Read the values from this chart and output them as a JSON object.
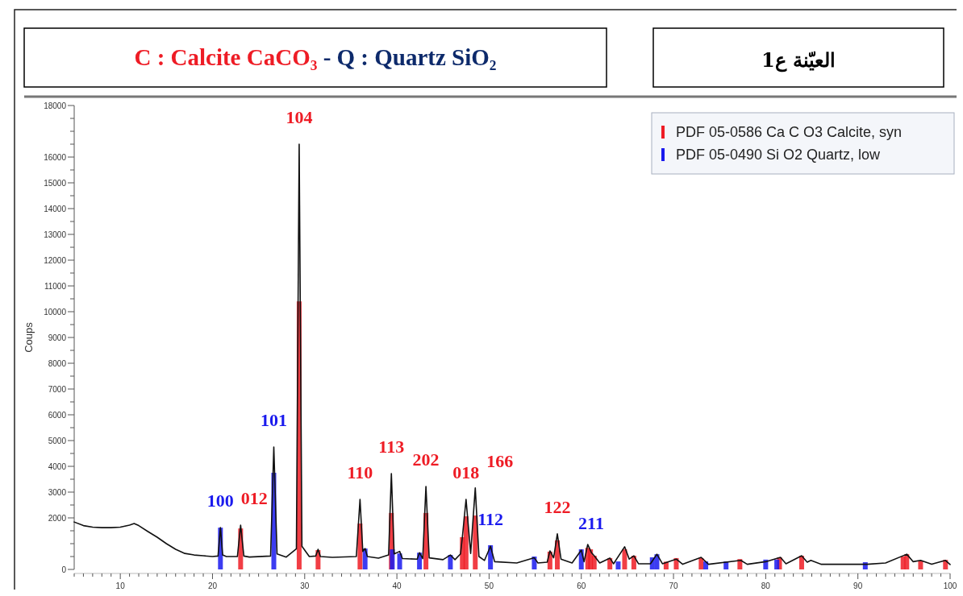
{
  "chart_data": {
    "type": "line",
    "title": "C : Calcite  CaCO₃",
    "subtitle": "- Q : Quartz  SiO₂",
    "ylabel": "Coups",
    "annotations": [
      "العيّنة  ع1",
      {
        "text": "100",
        "x": 20.86,
        "y": 1620
      },
      {
        "text": "012",
        "x": 23.05,
        "y": 1720
      },
      {
        "text": "101",
        "x": 26.65,
        "y": 4750
      },
      {
        "text": "104",
        "x": 29.4,
        "y": 16500
      },
      {
        "text": "110",
        "x": 36.0,
        "y": 2720
      },
      {
        "text": "113",
        "x": 39.4,
        "y": 3720
      },
      {
        "text": "202",
        "x": 43.15,
        "y": 3220
      },
      {
        "text": "018",
        "x": 47.5,
        "y": 2720
      },
      {
        "text": "166",
        "x": 48.5,
        "y": 3160
      },
      {
        "text": "112",
        "x": 50.15,
        "y": 900
      },
      {
        "text": "122",
        "x": 57.4,
        "y": 1380
      },
      {
        "text": "211",
        "x": 60.0,
        "y": 750
      }
    ],
    "xlim": [
      5,
      100
    ],
    "ylim": [
      0,
      18000
    ],
    "xticks": [
      {
        "value": 5,
        "label": null
      },
      {
        "value": 6,
        "label": null
      },
      {
        "value": 7,
        "label": null
      },
      {
        "value": 8,
        "label": null
      },
      {
        "value": 9,
        "label": null
      },
      10,
      {
        "value": 11,
        "label": null
      },
      {
        "value": 12,
        "label": null
      },
      {
        "value": 13,
        "label": null
      },
      {
        "value": 14,
        "label": null
      },
      {
        "value": 15,
        "label": null
      },
      {
        "value": 16,
        "label": null
      },
      {
        "value": 17,
        "label": null
      },
      {
        "value": 18,
        "label": null
      },
      {
        "value": 19,
        "label": null
      },
      20,
      {
        "value": 21,
        "label": null
      },
      {
        "value": 22,
        "label": null
      },
      {
        "value": 23,
        "label": null
      },
      {
        "value": 24,
        "label": null
      },
      {
        "value": 25,
        "label": null
      },
      {
        "value": 26,
        "label": null
      },
      {
        "value": 27,
        "label": null
      },
      {
        "value": 28,
        "label": null
      },
      {
        "value": 29,
        "label": null
      },
      30,
      {
        "value": 31,
        "label": null
      },
      {
        "value": 32,
        "label": null
      },
      {
        "value": 33,
        "label": null
      },
      {
        "value": 34,
        "label": null
      },
      {
        "value": 35,
        "label": null
      },
      {
        "value": 36,
        "label": null
      },
      {
        "value": 37,
        "label": null
      },
      {
        "value": 38,
        "label": null
      },
      {
        "value": 39,
        "label": null
      },
      40,
      {
        "value": 41,
        "label": null
      },
      {
        "value": 42,
        "label": null
      },
      {
        "value": 43,
        "label": null
      },
      {
        "value": 44,
        "label": null
      },
      {
        "value": 45,
        "label": null
      },
      {
        "value": 46,
        "label": null
      },
      {
        "value": 47,
        "label": null
      },
      {
        "value": 48,
        "label": null
      },
      {
        "value": 49,
        "label": null
      },
      50,
      {
        "value": 51,
        "label": null
      },
      {
        "value": 52,
        "label": null
      },
      {
        "value": 53,
        "label": null
      },
      {
        "value": 54,
        "label": null
      },
      {
        "value": 55,
        "label": null
      },
      {
        "value": 56,
        "label": null
      },
      {
        "value": 57,
        "label": null
      },
      {
        "value": 58,
        "label": null
      },
      {
        "value": 59,
        "label": null
      },
      60,
      {
        "value": 61,
        "label": null
      },
      {
        "value": 62,
        "label": null
      },
      {
        "value": 63,
        "label": null
      },
      {
        "value": 64,
        "label": null
      },
      {
        "value": 65,
        "label": null
      },
      {
        "value": 66,
        "label": null
      },
      {
        "value": 67,
        "label": null
      },
      {
        "value": 68,
        "label": null
      },
      {
        "value": 69,
        "label": null
      },
      70,
      {
        "value": 71,
        "label": null
      },
      {
        "value": 72,
        "label": null
      },
      {
        "value": 73,
        "label": null
      },
      {
        "value": 74,
        "label": null
      },
      {
        "value": 75,
        "label": null
      },
      {
        "value": 76,
        "label": null
      },
      {
        "value": 77,
        "label": null
      },
      {
        "value": 78,
        "label": null
      },
      {
        "value": 79,
        "label": null
      },
      80,
      {
        "value": 81,
        "label": null
      },
      {
        "value": 82,
        "label": null
      },
      {
        "value": 83,
        "label": null
      },
      {
        "value": 84,
        "label": null
      },
      {
        "value": 85,
        "label": null
      },
      {
        "value": 86,
        "label": null
      },
      {
        "value": 87,
        "label": null
      },
      {
        "value": 88,
        "label": null
      },
      {
        "value": 89,
        "label": null
      },
      90,
      {
        "value": 91,
        "label": null
      },
      {
        "value": 92,
        "label": null
      },
      {
        "value": 93,
        "label": null
      },
      {
        "value": 94,
        "label": null
      },
      {
        "value": 95,
        "label": null
      },
      {
        "value": 96,
        "label": null
      },
      {
        "value": 97,
        "label": null
      },
      {
        "value": 98,
        "label": null
      },
      {
        "value": 99,
        "label": null
      },
      100
    ],
    "yticks": [
      0,
      {
        "value": 500,
        "label": null
      },
      {
        "value": 1000,
        "label": null
      },
      {
        "value": 1500,
        "label": null
      },
      2000,
      {
        "value": 2500,
        "label": null
      },
      3000,
      {
        "value": 3500,
        "label": null
      },
      4000,
      {
        "value": 4500,
        "label": null
      },
      5000,
      {
        "value": 5500,
        "label": null
      },
      6000,
      {
        "value": 6500,
        "label": null
      },
      7000,
      {
        "value": 7500,
        "label": null
      },
      8000,
      {
        "value": 8500,
        "label": null
      },
      9000,
      {
        "value": 9500,
        "label": null
      },
      10000,
      {
        "value": 10500,
        "label": null
      },
      11000,
      {
        "value": 11500,
        "label": null
      },
      12000,
      {
        "value": 12500,
        "label": null
      },
      13000,
      {
        "value": 13500,
        "label": null
      },
      14000,
      {
        "value": 14500,
        "label": null
      },
      15000,
      {
        "value": 15500,
        "label": null
      },
      16000,
      {
        "value": 16500,
        "label": null
      },
      {
        "value": 17000,
        "label": null
      },
      {
        "value": 17500,
        "label": null
      },
      18000
    ],
    "legend": "top right",
    "series": [
      {
        "type": "bar",
        "name": "PDF 05-0586 Ca C O3 Calcite, syn",
        "color": "#ee1c25",
        "x": [
          23.05,
          29.4,
          31.45,
          36.0,
          39.4,
          43.15,
          47.1,
          47.5,
          48.5,
          56.6,
          57.4,
          60.7,
          61.0,
          61.4,
          63.1,
          64.7,
          65.7,
          69.2,
          70.3,
          73.0,
          77.2,
          81.5,
          83.9,
          94.9,
          95.3,
          96.8,
          99.5
        ],
        "values": [
          1590,
          10400,
          750,
          1780,
          2190,
          2190,
          1250,
          2060,
          2090,
          690,
          1130,
          840,
          780,
          530,
          440,
          780,
          530,
          300,
          440,
          440,
          400,
          470,
          530,
          500,
          590,
          340,
          370
        ]
      },
      {
        "type": "bar",
        "name": "PDF 05-0490 Si O2 Quartz, low",
        "color": "#1a1aee",
        "x": [
          20.86,
          26.65,
          36.55,
          39.5,
          40.3,
          42.45,
          45.8,
          50.15,
          54.9,
          60.0,
          64.0,
          67.7,
          68.2,
          73.5,
          75.7,
          80.0,
          81.2,
          90.8
        ],
        "values": [
          1620,
          3750,
          810,
          780,
          620,
          650,
          560,
          940,
          500,
          780,
          310,
          470,
          590,
          310,
          310,
          380,
          380,
          280
        ]
      },
      {
        "color": "#111111",
        "x": [
          5,
          6,
          7,
          8,
          9,
          10,
          11,
          11.5,
          12,
          13,
          14,
          15,
          16,
          17,
          18,
          19,
          20,
          20.6,
          20.86,
          21.1,
          21.5,
          22.7,
          23.05,
          23.4,
          24,
          26.3,
          26.65,
          27.0,
          28,
          29.1,
          29.4,
          29.7,
          30.5,
          31.2,
          31.45,
          31.7,
          33,
          35.6,
          36.0,
          36.3,
          36.55,
          36.8,
          38,
          39.1,
          39.4,
          39.7,
          40.3,
          40.6,
          42.2,
          42.45,
          42.8,
          43.15,
          43.5,
          45,
          45.8,
          46.3,
          46.9,
          47.1,
          47.5,
          48.0,
          48.5,
          48.9,
          49.5,
          50.15,
          50.6,
          53,
          54.9,
          55.3,
          56.3,
          56.6,
          57.0,
          57.4,
          57.8,
          59,
          60.0,
          60.3,
          60.7,
          61.1,
          61.4,
          62,
          63.1,
          63.5,
          64.7,
          65.2,
          65.7,
          66.2,
          67.5,
          68.2,
          68.8,
          70.3,
          71,
          73,
          73.8,
          77.3,
          78,
          80,
          81.6,
          82.2,
          83.9,
          84.5,
          84.9,
          86,
          91,
          93,
          95.3,
          96,
          96.8,
          98,
          99.5,
          100
        ],
        "values": [
          1840,
          1700,
          1640,
          1620,
          1620,
          1640,
          1720,
          1780,
          1700,
          1470,
          1250,
          1000,
          780,
          620,
          560,
          530,
          500,
          520,
          1620,
          560,
          500,
          500,
          1720,
          520,
          480,
          520,
          4750,
          600,
          480,
          800,
          16500,
          900,
          500,
          520,
          780,
          500,
          470,
          500,
          2720,
          700,
          810,
          500,
          440,
          560,
          3720,
          600,
          700,
          420,
          400,
          650,
          420,
          3220,
          450,
          380,
          560,
          380,
          600,
          1250,
          2720,
          620,
          3160,
          500,
          350,
          900,
          300,
          250,
          450,
          250,
          280,
          720,
          450,
          1380,
          400,
          250,
          750,
          300,
          970,
          650,
          530,
          250,
          440,
          220,
          880,
          400,
          530,
          220,
          220,
          590,
          220,
          400,
          200,
          470,
          200,
          350,
          200,
          300,
          470,
          220,
          530,
          280,
          350,
          200,
          200,
          250,
          590,
          300,
          350,
          200,
          350,
          190
        ]
      }
    ]
  }
}
